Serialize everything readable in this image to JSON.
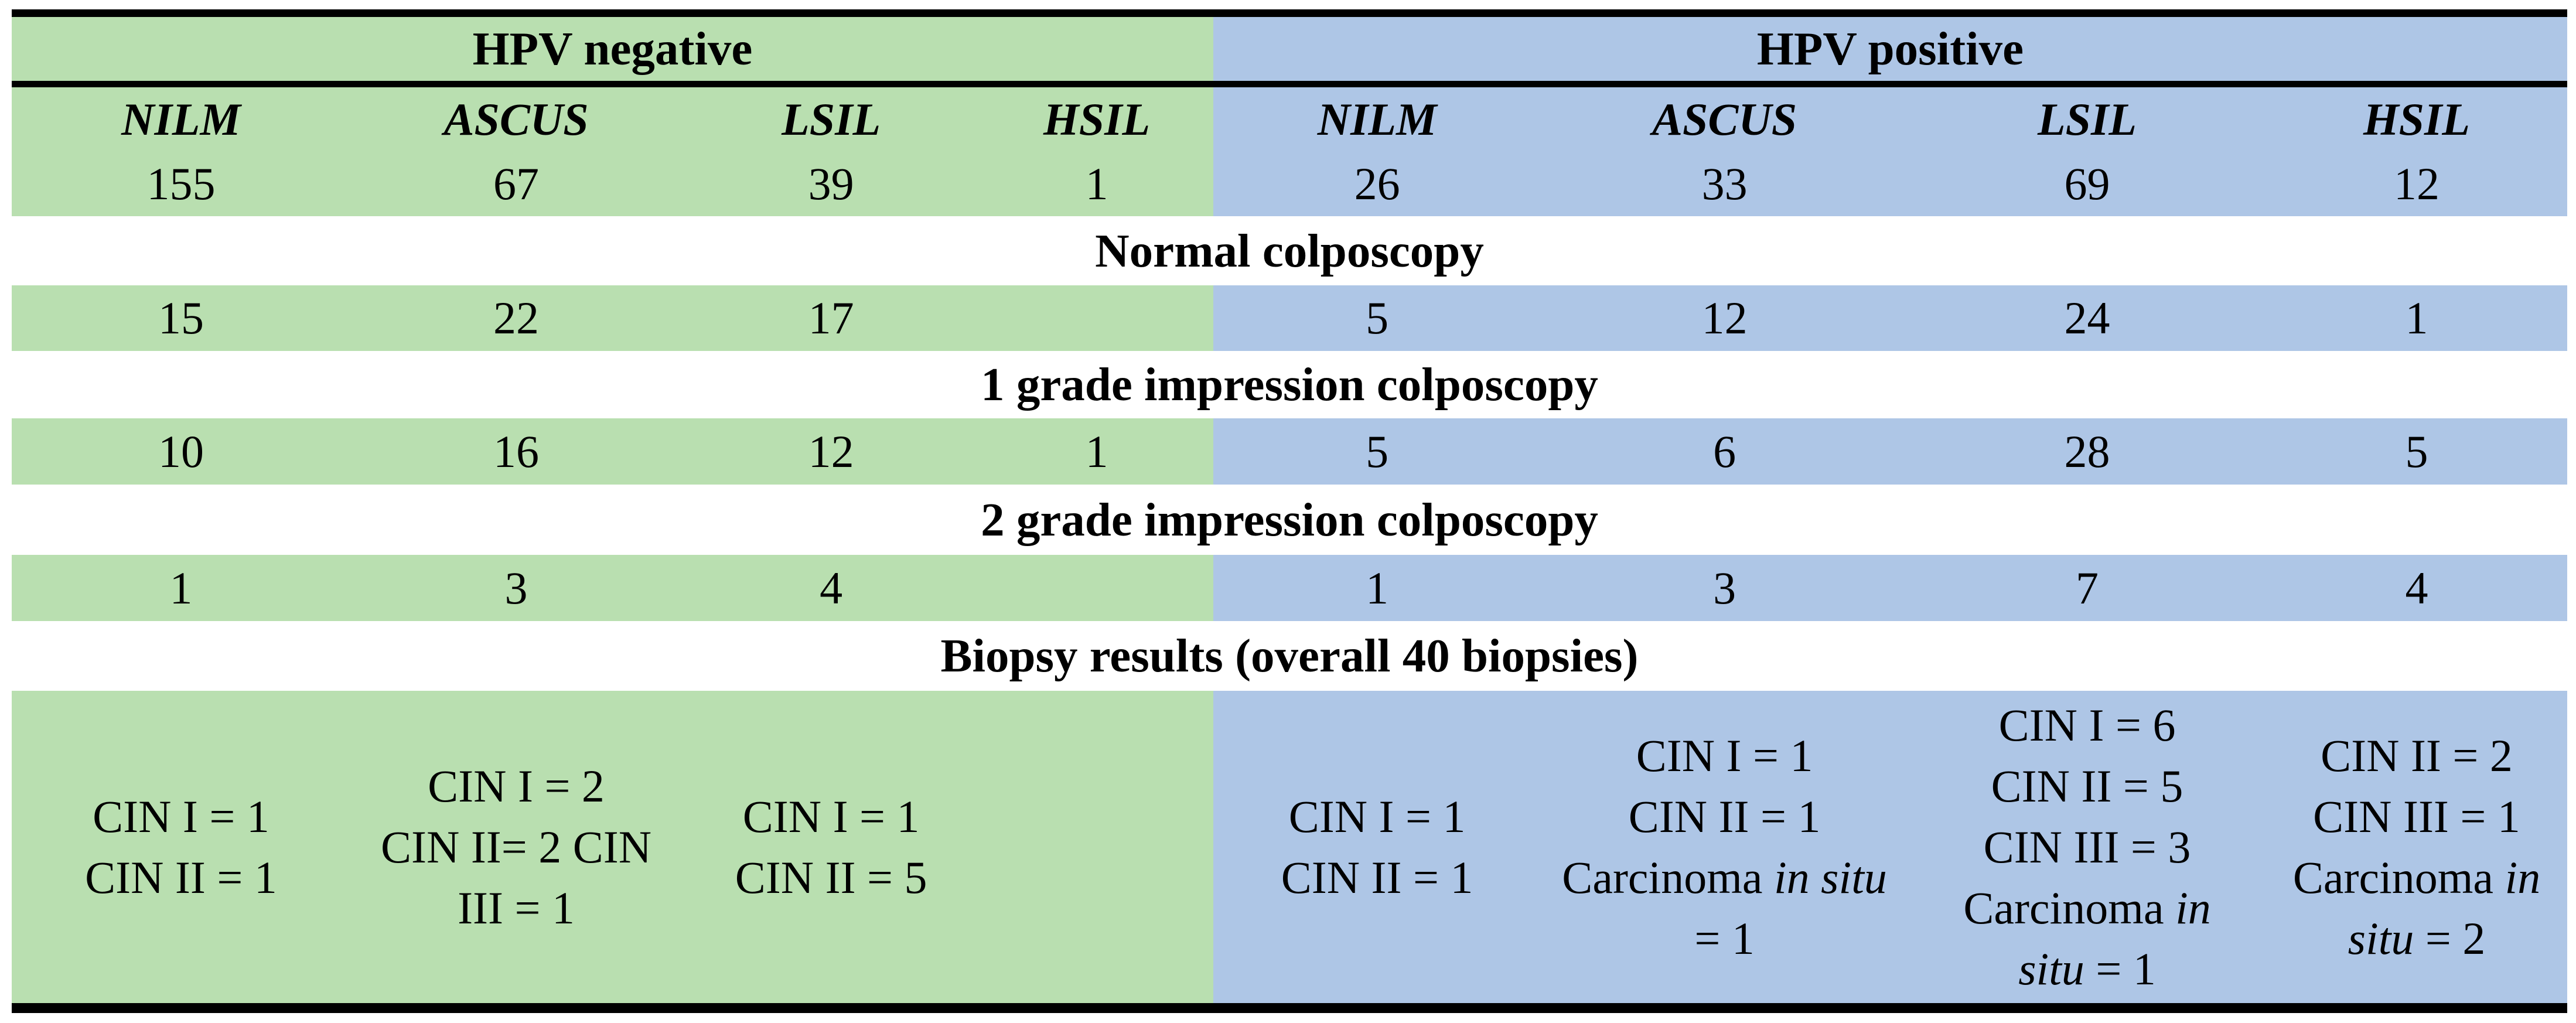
{
  "table": {
    "groups": [
      {
        "label": "HPV negative",
        "bg": "#b9dfb0"
      },
      {
        "label": "HPV positive",
        "bg": "#aec6e6"
      }
    ],
    "columns": [
      {
        "group": "HPV negative",
        "header": "NILM",
        "count": "155"
      },
      {
        "group": "HPV negative",
        "header": "ASCUS",
        "count": "67"
      },
      {
        "group": "HPV negative",
        "header": "LSIL",
        "count": "39"
      },
      {
        "group": "HPV negative",
        "header": "HSIL",
        "count": "1"
      },
      {
        "group": "HPV positive",
        "header": "NILM",
        "count": "26"
      },
      {
        "group": "HPV positive",
        "header": "ASCUS",
        "count": "33"
      },
      {
        "group": "HPV positive",
        "header": "LSIL",
        "count": "69"
      },
      {
        "group": "HPV positive",
        "header": "HSIL",
        "count": "12"
      }
    ],
    "sections": [
      {
        "title": "Normal colposcopy",
        "values": [
          "15",
          "22",
          "17",
          "",
          "5",
          "12",
          "24",
          "1"
        ]
      },
      {
        "title": "1 grade impression colposcopy",
        "values": [
          "10",
          "16",
          "12",
          "1",
          "5",
          "6",
          "28",
          "5"
        ]
      },
      {
        "title": "2 grade impression colposcopy",
        "values": [
          "1",
          "3",
          "4",
          "",
          "1",
          "3",
          "7",
          "4"
        ]
      },
      {
        "title": "Biopsy results (overall 40 biopsies)"
      }
    ]
  },
  "biopsy_cells": [
    [
      [
        {
          "t": "CIN I = 1"
        }
      ],
      [
        {
          "t": "CIN II = 1"
        }
      ]
    ],
    [
      [
        {
          "t": "CIN I = 2"
        }
      ],
      [
        {
          "t": "CIN II= 2 CIN"
        }
      ],
      [
        {
          "t": "III = 1"
        }
      ]
    ],
    [
      [
        {
          "t": "CIN I = 1"
        }
      ],
      [
        {
          "t": "CIN II = 5"
        }
      ]
    ],
    [],
    [
      [
        {
          "t": "CIN I = 1"
        }
      ],
      [
        {
          "t": "CIN II = 1"
        }
      ]
    ],
    [
      [
        {
          "t": "CIN I = 1"
        }
      ],
      [
        {
          "t": "CIN II = 1"
        }
      ],
      [
        {
          "t": "Carcinoma "
        },
        {
          "t": "in situ",
          "i": true
        }
      ],
      [
        {
          "t": "= 1"
        }
      ]
    ],
    [
      [
        {
          "t": "CIN I = 6"
        }
      ],
      [
        {
          "t": "CIN II = 5"
        }
      ],
      [
        {
          "t": "CIN III = 3"
        }
      ],
      [
        {
          "t": "Carcinoma "
        },
        {
          "t": "in",
          "i": true
        }
      ],
      [
        {
          "t": "situ",
          "i": true
        },
        {
          "t": " = 1"
        }
      ]
    ],
    [
      [
        {
          "t": "CIN II = 2"
        }
      ],
      [
        {
          "t": "CIN III = 1"
        }
      ],
      [
        {
          "t": "Carcinoma "
        },
        {
          "t": "in",
          "i": true
        }
      ],
      [
        {
          "t": "situ",
          "i": true
        },
        {
          "t": " = 2"
        }
      ]
    ]
  ],
  "colors": {
    "hpv_negative_bg": "#b9dfb0",
    "hpv_positive_bg": "#aec6e6",
    "rule": "#000000",
    "text": "#000000"
  }
}
